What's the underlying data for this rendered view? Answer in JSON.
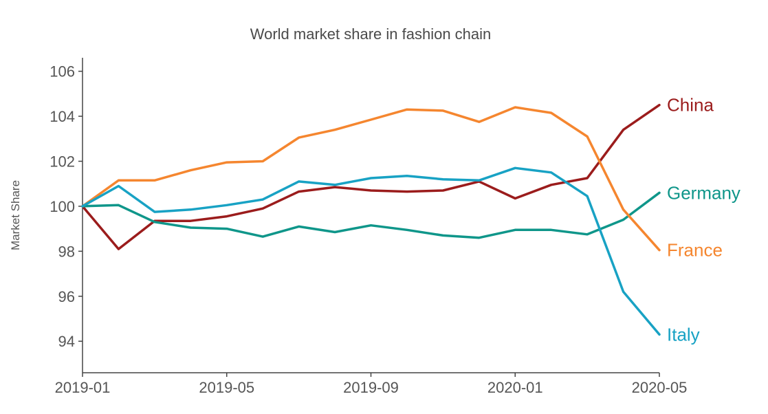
{
  "chart_data": {
    "type": "line",
    "title": "World market share in fashion chain",
    "xlabel": "",
    "ylabel": "Market Share",
    "x": [
      "2019-01",
      "2019-02",
      "2019-03",
      "2019-04",
      "2019-05",
      "2019-06",
      "2019-07",
      "2019-08",
      "2019-09",
      "2019-10",
      "2019-11",
      "2019-12",
      "2020-01",
      "2020-02",
      "2020-03",
      "2020-04",
      "2020-05"
    ],
    "x_ticks": [
      "2019-01",
      "2019-05",
      "2019-09",
      "2020-01",
      "2020-05"
    ],
    "y_ticks": [
      94,
      96,
      98,
      100,
      102,
      104,
      106
    ],
    "ylim": [
      92.6,
      106.6
    ],
    "grid": false,
    "legend": "direct labels at line ends (right)",
    "series": [
      {
        "name": "China",
        "color": "#9b1c1c",
        "values": [
          100.0,
          98.1,
          99.35,
          99.35,
          99.55,
          99.9,
          100.65,
          100.85,
          100.7,
          100.65,
          100.7,
          101.1,
          100.35,
          100.95,
          101.25,
          103.4,
          104.5
        ]
      },
      {
        "name": "Germany",
        "color": "#0f968a",
        "values": [
          100.0,
          100.05,
          99.3,
          99.05,
          99.0,
          98.65,
          99.1,
          98.85,
          99.15,
          98.95,
          98.7,
          98.6,
          98.95,
          98.95,
          98.75,
          99.4,
          100.6
        ]
      },
      {
        "name": "France",
        "color": "#f5862f",
        "values": [
          100.0,
          101.15,
          101.15,
          101.6,
          101.95,
          102.0,
          103.05,
          103.4,
          103.85,
          104.3,
          104.25,
          103.75,
          104.4,
          104.15,
          103.1,
          99.85,
          98.05
        ]
      },
      {
        "name": "Italy",
        "color": "#18a2c4",
        "values": [
          100.0,
          100.9,
          99.75,
          99.85,
          100.05,
          100.3,
          101.1,
          100.95,
          101.25,
          101.35,
          101.2,
          101.15,
          101.7,
          101.5,
          100.45,
          96.2,
          94.3
        ]
      }
    ]
  }
}
